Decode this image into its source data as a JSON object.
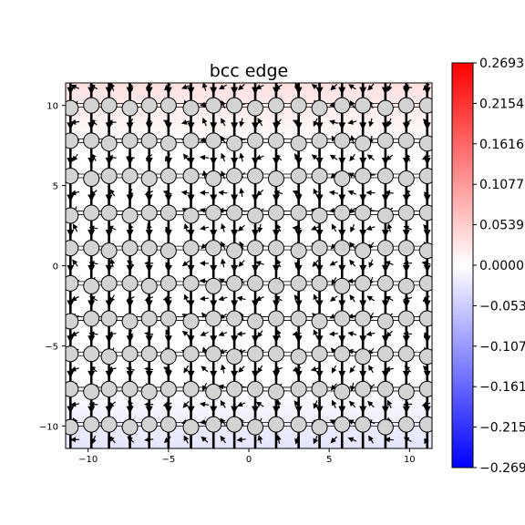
{
  "chart_data": {
    "type": "heatmap",
    "title": "bcc edge",
    "xlabel": "",
    "ylabel": "",
    "xlim": [
      -11.4,
      11.4
    ],
    "ylim": [
      -11.4,
      11.4
    ],
    "x_ticks": [
      -10,
      -5,
      0,
      5,
      10
    ],
    "x_tick_labels": [
      "−10",
      "−5",
      "0",
      "5",
      "10"
    ],
    "y_ticks": [
      10,
      5,
      0,
      -5,
      -10
    ],
    "y_tick_labels": [
      "10",
      "5",
      "0",
      "−5",
      "−10"
    ],
    "colormap": "bwr",
    "colorbar_range": [
      -0.2693,
      0.2693
    ],
    "colorbar_ticks": [
      0.2693,
      0.2154,
      0.1616,
      0.1077,
      0.0539,
      0.0,
      -0.0539,
      -0.1077,
      -0.1616,
      -0.2154,
      -0.2693
    ],
    "colorbar_tick_labels": [
      "0.2693",
      "0.2154",
      "0.1616",
      "0.1077",
      "0.0539",
      "0.0000",
      "−0.0539",
      "−0.1077",
      "−0.1616",
      "−0.2154",
      "−0.2693"
    ],
    "field_at_top": 0.05,
    "field_at_bottom": -0.05,
    "atom_column_x": [
      -11.1,
      -9.8,
      -8.7,
      -7.4,
      -6.2,
      -5.0,
      -3.6,
      -2.2,
      -0.9,
      0.4,
      1.7,
      3.1,
      4.4,
      5.8,
      7.1,
      8.5,
      9.8,
      11.1
    ],
    "atom_row_y": [
      10.0,
      7.8,
      5.6,
      3.3,
      1.1,
      -1.1,
      -3.3,
      -5.5,
      -7.7,
      -9.9
    ],
    "grid": false
  },
  "colors": {
    "atom_fill": "#d3d3d3",
    "atom_edge": "#000000",
    "arrow": "#000000",
    "positive": "#ff0000",
    "negative": "#0000ff",
    "zero": "#ffffff"
  }
}
